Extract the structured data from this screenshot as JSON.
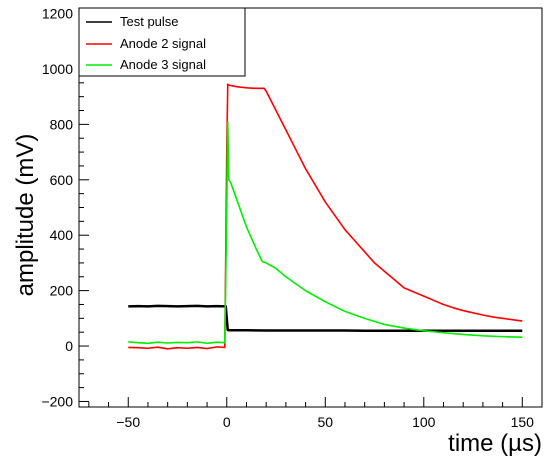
{
  "chart_data": {
    "type": "line",
    "xlabel": "time (µs)",
    "ylabel": "amplitude (mV)",
    "xlim": [
      -75,
      160
    ],
    "ylim": [
      -220,
      1220
    ],
    "x_ticks": [
      -50,
      0,
      50,
      100,
      150
    ],
    "x_tick_labels": [
      "−50",
      "0",
      "50",
      "100",
      "150"
    ],
    "y_ticks": [
      -200,
      0,
      200,
      400,
      600,
      800,
      1000,
      1200
    ],
    "y_tick_labels": [
      "−200",
      "0",
      "200",
      "400",
      "600",
      "800",
      "1000",
      "1200"
    ],
    "grid": false,
    "legend_position": "top-left",
    "series": [
      {
        "name": "Test pulse",
        "color": "#000000",
        "x": [
          -50,
          -45,
          -40,
          -35,
          -30,
          -25,
          -20,
          -15,
          -10,
          -5,
          -0.5,
          0,
          0.5,
          1,
          5,
          10,
          20,
          30,
          40,
          50,
          60,
          70,
          80,
          90,
          100,
          110,
          120,
          130,
          140,
          150
        ],
        "y": [
          143,
          144,
          143,
          145,
          144,
          143,
          144,
          145,
          143,
          144,
          143,
          100,
          58,
          57,
          57,
          57,
          56,
          56,
          56,
          56,
          56,
          55,
          55,
          55,
          55,
          55,
          55,
          55,
          55,
          55
        ]
      },
      {
        "name": "Anode 2 signal",
        "color": "#ff0000",
        "x": [
          -50,
          -45,
          -40,
          -35,
          -30,
          -25,
          -20,
          -15,
          -10,
          -5,
          -1,
          0,
          0.5,
          1,
          5,
          10,
          15,
          19,
          20,
          25,
          30,
          35,
          40,
          45,
          50,
          55,
          60,
          65,
          70,
          75,
          80,
          85,
          90,
          95,
          100,
          105,
          110,
          115,
          120,
          125,
          130,
          135,
          140,
          145,
          150
        ],
        "y": [
          -5,
          -6,
          -8,
          -4,
          -10,
          -6,
          -8,
          -5,
          -9,
          -3,
          -5,
          700,
          945,
          942,
          936,
          932,
          930,
          930,
          920,
          850,
          780,
          710,
          640,
          580,
          520,
          470,
          420,
          380,
          340,
          300,
          270,
          240,
          210,
          195,
          180,
          165,
          150,
          138,
          128,
          120,
          112,
          105,
          100,
          95,
          90
        ]
      },
      {
        "name": "Anode 3 signal",
        "color": "#00ee00",
        "x": [
          -50,
          -45,
          -40,
          -35,
          -30,
          -25,
          -20,
          -15,
          -10,
          -5,
          -1,
          0,
          0.5,
          1,
          2,
          5,
          10,
          15,
          18,
          20,
          25,
          30,
          40,
          50,
          60,
          70,
          80,
          90,
          100,
          110,
          120,
          130,
          140,
          150
        ],
        "y": [
          15,
          12,
          10,
          14,
          11,
          13,
          12,
          15,
          10,
          14,
          12,
          500,
          810,
          600,
          590,
          530,
          430,
          350,
          305,
          300,
          280,
          250,
          200,
          160,
          125,
          100,
          78,
          65,
          55,
          48,
          42,
          37,
          34,
          32
        ]
      }
    ]
  }
}
